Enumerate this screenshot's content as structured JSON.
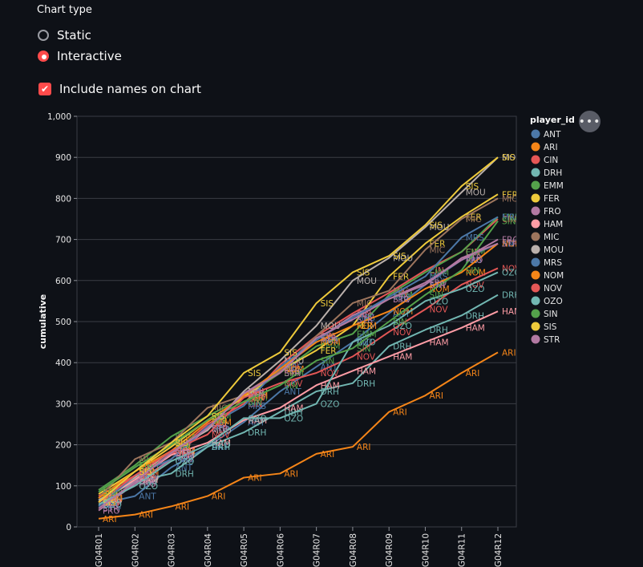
{
  "controls": {
    "chart_type_label": "Chart type",
    "options": [
      {
        "label": "Static",
        "selected": false
      },
      {
        "label": "Interactive",
        "selected": true
      }
    ],
    "include_names_label": "Include names on chart",
    "include_names_checked": true,
    "checkmark": "✔",
    "menu_dots": "•••"
  },
  "colors": {
    "ANT": "#4c78a8",
    "ARI": "#f58518",
    "CIN": "#e45756",
    "DRH": "#72b7b2",
    "EMM": "#54a24b",
    "FER": "#eeca3b",
    "FRO": "#b279a2",
    "HAM": "#ff9da6",
    "MIC": "#9d755d",
    "MOU": "#bab0ac",
    "MRS": "#4c78a8",
    "NOM": "#f58518",
    "NOV": "#e45756",
    "OZO": "#72b7b2",
    "SIN": "#54a24b",
    "SIS": "#eeca3b",
    "STR": "#b279a2"
  },
  "chart_data": {
    "type": "line",
    "title": "",
    "xlabel": "",
    "ylabel": "cumulative",
    "legend_title": "player_id",
    "legend_position": "right",
    "grid": true,
    "ylim": [
      0,
      1000
    ],
    "yticks": [
      0,
      100,
      200,
      300,
      400,
      500,
      600,
      700,
      800,
      900,
      1000
    ],
    "ytick_labels": [
      "0",
      "100",
      "200",
      "300",
      "400",
      "500",
      "600",
      "700",
      "800",
      "900",
      "1,000"
    ],
    "x": [
      "G04R01",
      "G04R02",
      "G04R03",
      "G04R04",
      "G04R05",
      "G04R06",
      "G04R07",
      "G04R08",
      "G04R09",
      "G04R10",
      "G04R11",
      "G04R12"
    ],
    "series": [
      {
        "name": "ANT",
        "values": [
          55,
          75,
          145,
          195,
          255,
          330,
          390,
          450,
          520,
          590,
          650,
          690
        ]
      },
      {
        "name": "ARI",
        "values": [
          20,
          30,
          50,
          75,
          120,
          130,
          178,
          195,
          280,
          320,
          375,
          425
        ]
      },
      {
        "name": "CIN",
        "values": [
          75,
          125,
          175,
          250,
          300,
          395,
          465,
          520,
          570,
          625,
          670,
          750
        ]
      },
      {
        "name": "DRH",
        "values": [
          65,
          110,
          130,
          195,
          230,
          280,
          330,
          350,
          440,
          480,
          515,
          565
        ]
      },
      {
        "name": "EMM",
        "values": [
          90,
          150,
          220,
          270,
          315,
          375,
          440,
          470,
          565,
          620,
          670,
          755
        ]
      },
      {
        "name": "FER",
        "values": [
          80,
          135,
          195,
          260,
          315,
          380,
          430,
          490,
          610,
          690,
          755,
          810
        ]
      },
      {
        "name": "FRO",
        "values": [
          40,
          105,
          165,
          240,
          325,
          380,
          455,
          515,
          555,
          595,
          650,
          700
        ]
      },
      {
        "name": "HAM",
        "values": [
          60,
          115,
          175,
          205,
          260,
          290,
          345,
          380,
          415,
          450,
          485,
          525
        ]
      },
      {
        "name": "MIC",
        "values": [
          70,
          165,
          205,
          290,
          320,
          380,
          465,
          545,
          575,
          675,
          750,
          800
        ]
      },
      {
        "name": "MOU",
        "values": [
          65,
          120,
          185,
          235,
          330,
          405,
          490,
          600,
          655,
          730,
          815,
          900
        ]
      },
      {
        "name": "MRS",
        "values": [
          50,
          125,
          165,
          245,
          295,
          390,
          455,
          510,
          560,
          610,
          705,
          755
        ]
      },
      {
        "name": "NOM",
        "values": [
          70,
          135,
          185,
          255,
          320,
          385,
          450,
          490,
          525,
          580,
          620,
          690
        ]
      },
      {
        "name": "NOV",
        "values": [
          60,
          125,
          185,
          225,
          315,
          350,
          375,
          415,
          475,
          530,
          590,
          630
        ]
      },
      {
        "name": "OZO",
        "values": [
          55,
          100,
          160,
          200,
          265,
          265,
          300,
          450,
          490,
          550,
          580,
          620
        ]
      },
      {
        "name": "SIN",
        "values": [
          85,
          145,
          200,
          260,
          305,
          345,
          405,
          435,
          500,
          565,
          625,
          745
        ]
      },
      {
        "name": "SIS",
        "values": [
          60,
          135,
          205,
          270,
          375,
          425,
          545,
          620,
          660,
          735,
          830,
          900
        ]
      },
      {
        "name": "STR",
        "values": [
          45,
          110,
          180,
          240,
          325,
          375,
          460,
          505,
          555,
          590,
          655,
          690
        ]
      }
    ]
  }
}
